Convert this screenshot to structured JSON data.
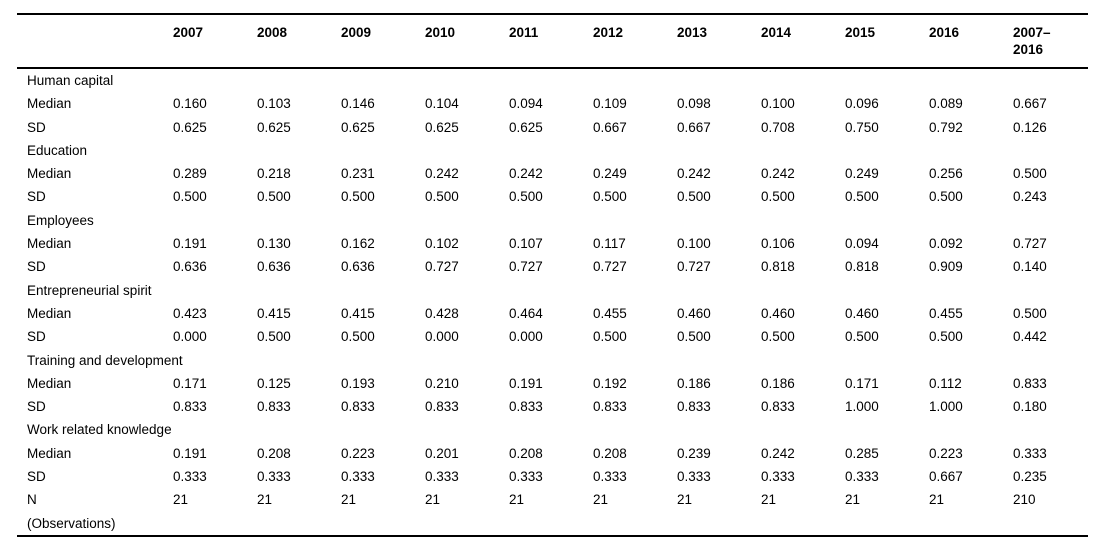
{
  "page": {
    "background_color": "#ffffff",
    "text_color": "#000000"
  },
  "table": {
    "header": {
      "years": [
        "2007",
        "2008",
        "2009",
        "2010",
        "2011",
        "2012",
        "2013",
        "2014",
        "2015",
        "2016"
      ],
      "total_column": {
        "line1": "2007–",
        "line2": "2016"
      }
    },
    "row_labels": {
      "median": "Median",
      "sd": "SD"
    },
    "sections": [
      {
        "name": "Human capital",
        "median": [
          "0.160",
          "0.103",
          "0.146",
          "0.104",
          "0.094",
          "0.109",
          "0.098",
          "0.100",
          "0.096",
          "0.089",
          "0.667"
        ],
        "sd": [
          "0.625",
          "0.625",
          "0.625",
          "0.625",
          "0.625",
          "0.667",
          "0.667",
          "0.708",
          "0.750",
          "0.792",
          "0.126"
        ]
      },
      {
        "name": "Education",
        "median": [
          "0.289",
          "0.218",
          "0.231",
          "0.242",
          "0.242",
          "0.249",
          "0.242",
          "0.242",
          "0.249",
          "0.256",
          "0.500"
        ],
        "sd": [
          "0.500",
          "0.500",
          "0.500",
          "0.500",
          "0.500",
          "0.500",
          "0.500",
          "0.500",
          "0.500",
          "0.500",
          "0.243"
        ]
      },
      {
        "name": "Employees",
        "median": [
          "0.191",
          "0.130",
          "0.162",
          "0.102",
          "0.107",
          "0.117",
          "0.100",
          "0.106",
          "0.094",
          "0.092",
          "0.727"
        ],
        "sd": [
          "0.636",
          "0.636",
          "0.636",
          "0.727",
          "0.727",
          "0.727",
          "0.727",
          "0.818",
          "0.818",
          "0.909",
          "0.140"
        ]
      },
      {
        "name": "Entrepreneurial spirit",
        "median": [
          "0.423",
          "0.415",
          "0.415",
          "0.428",
          "0.464",
          "0.455",
          "0.460",
          "0.460",
          "0.460",
          "0.455",
          "0.500"
        ],
        "sd": [
          "0.000",
          "0.500",
          "0.500",
          "0.000",
          "0.000",
          "0.500",
          "0.500",
          "0.500",
          "0.500",
          "0.500",
          "0.442"
        ]
      },
      {
        "name": "Training and development",
        "median": [
          "0.171",
          "0.125",
          "0.193",
          "0.210",
          "0.191",
          "0.192",
          "0.186",
          "0.186",
          "0.171",
          "0.112",
          "0.833"
        ],
        "sd": [
          "0.833",
          "0.833",
          "0.833",
          "0.833",
          "0.833",
          "0.833",
          "0.833",
          "0.833",
          "1.000",
          "1.000",
          "0.180"
        ]
      },
      {
        "name": "Work related knowledge",
        "median": [
          "0.191",
          "0.208",
          "0.223",
          "0.201",
          "0.208",
          "0.208",
          "0.239",
          "0.242",
          "0.285",
          "0.223",
          "0.333"
        ],
        "sd": [
          "0.333",
          "0.333",
          "0.333",
          "0.333",
          "0.333",
          "0.333",
          "0.333",
          "0.333",
          "0.333",
          "0.667",
          "0.235"
        ]
      }
    ],
    "observations_row": {
      "label_line1": "N",
      "label_line2": "(Observations)",
      "values": [
        "21",
        "21",
        "21",
        "21",
        "21",
        "21",
        "21",
        "21",
        "21",
        "21",
        "210"
      ]
    }
  }
}
